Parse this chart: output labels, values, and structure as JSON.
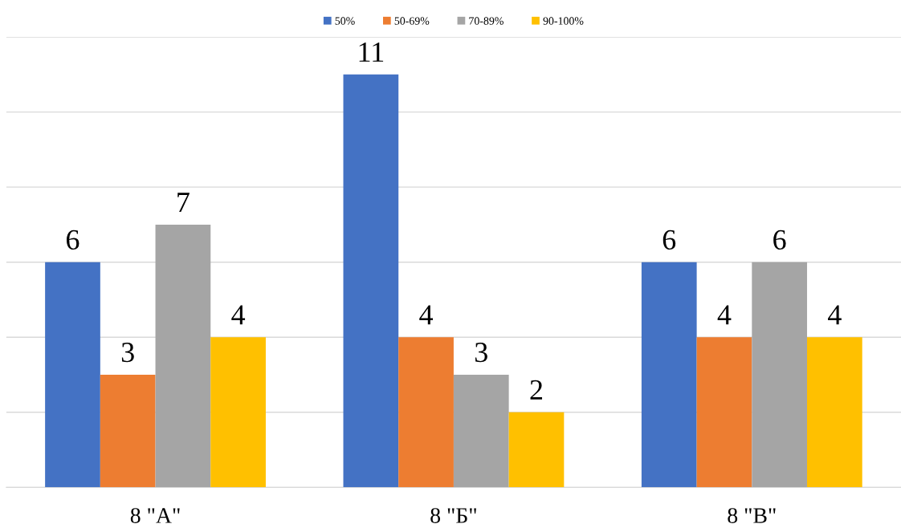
{
  "chart_data": {
    "type": "bar",
    "categories": [
      "8 \"А\"",
      "8 \"Б\"",
      "8 \"В\""
    ],
    "series": [
      {
        "name": "50%",
        "color": "#4472c4",
        "values": [
          6,
          11,
          6
        ]
      },
      {
        "name": "50-69%",
        "color": "#ed7d31",
        "values": [
          3,
          4,
          4
        ]
      },
      {
        "name": "70-89%",
        "color": "#a5a5a5",
        "values": [
          7,
          3,
          6
        ]
      },
      {
        "name": "90-100%",
        "color": "#ffc000",
        "values": [
          4,
          2,
          4
        ]
      }
    ],
    "ylim": [
      0,
      12
    ],
    "yticks": [
      {
        "value": 0,
        "label": null
      },
      {
        "value": 2,
        "label": null
      },
      {
        "value": 4,
        "label": null
      },
      {
        "value": 6,
        "label": null
      },
      {
        "value": 8,
        "label": null
      },
      {
        "value": 10,
        "label": null
      },
      {
        "value": 12,
        "label": null
      }
    ],
    "tick_labels": "x",
    "grid": "y",
    "legend": "top",
    "data_labels": true
  }
}
